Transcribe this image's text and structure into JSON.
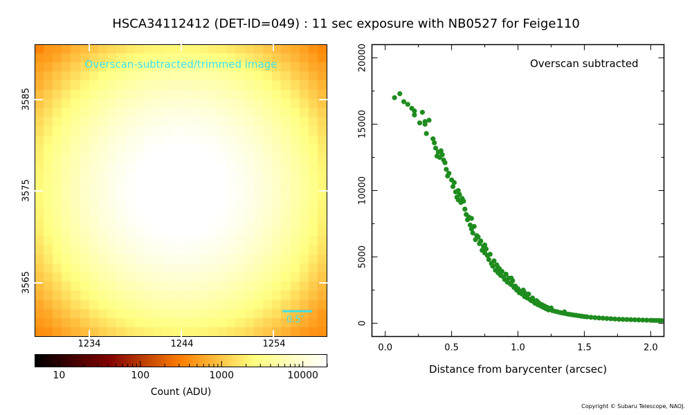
{
  "title": "HSCA34112412 (DET-ID=049) :  11 sec exposure with NB0527 for Feige110",
  "copyright": "Copyright © Subaru Telescope, NAOJ.",
  "image_panel": {
    "label": "Overscan-subtracted/trimmed image",
    "scale_bar_label": "0.5″",
    "x_ticks": [
      "1234",
      "1244",
      "1254"
    ],
    "y_ticks": [
      "3585",
      "3575",
      "3565"
    ],
    "colorbar": {
      "title": "Count (ADU)",
      "ticks": [
        "10",
        "100",
        "1000",
        "10000"
      ],
      "scale": "log",
      "colormap": "afmhot"
    }
  },
  "chart_data": {
    "type": "scatter",
    "annotation": "Overscan subtracted",
    "xlabel": "Distance from barycenter (arcsec)",
    "ylabel": "",
    "xlim": [
      -0.1,
      2.1
    ],
    "ylim": [
      -1000,
      21000
    ],
    "x_ticks": [
      "0.0",
      "0.5",
      "1.0",
      "1.5",
      "2.0"
    ],
    "y_ticks": [
      "0",
      "5000",
      "10000",
      "15000",
      "20000"
    ],
    "marker_color": "#1e8c1e",
    "points": [
      [
        0.07,
        17000
      ],
      [
        0.11,
        17300
      ],
      [
        0.14,
        16700
      ],
      [
        0.17,
        16500
      ],
      [
        0.2,
        16200
      ],
      [
        0.22,
        16000
      ],
      [
        0.22,
        15700
      ],
      [
        0.26,
        15100
      ],
      [
        0.28,
        15900
      ],
      [
        0.3,
        15000
      ],
      [
        0.3,
        15200
      ],
      [
        0.31,
        14300
      ],
      [
        0.33,
        15300
      ],
      [
        0.36,
        13900
      ],
      [
        0.37,
        13600
      ],
      [
        0.38,
        13200
      ],
      [
        0.39,
        12600
      ],
      [
        0.4,
        12900
      ],
      [
        0.41,
        12500
      ],
      [
        0.42,
        13000
      ],
      [
        0.43,
        12700
      ],
      [
        0.44,
        12300
      ],
      [
        0.46,
        11600
      ],
      [
        0.47,
        11100
      ],
      [
        0.48,
        11300
      ],
      [
        0.5,
        10800
      ],
      [
        0.51,
        10300
      ],
      [
        0.52,
        10600
      ],
      [
        0.53,
        9900
      ],
      [
        0.54,
        9500
      ],
      [
        0.55,
        9300
      ],
      [
        0.56,
        9700
      ],
      [
        0.57,
        9100
      ],
      [
        0.58,
        9400
      ],
      [
        0.59,
        9200
      ],
      [
        0.6,
        8600
      ],
      [
        0.61,
        8200
      ],
      [
        0.62,
        7800
      ],
      [
        0.63,
        8000
      ],
      [
        0.64,
        7400
      ],
      [
        0.65,
        7100
      ],
      [
        0.66,
        6800
      ],
      [
        0.67,
        7300
      ],
      [
        0.68,
        6300
      ],
      [
        0.69,
        6600
      ],
      [
        0.7,
        6500
      ],
      [
        0.71,
        6000
      ],
      [
        0.72,
        6200
      ],
      [
        0.73,
        5500
      ],
      [
        0.74,
        5800
      ],
      [
        0.75,
        5300
      ],
      [
        0.76,
        5600
      ],
      [
        0.77,
        5100
      ],
      [
        0.78,
        4800
      ],
      [
        0.79,
        5200
      ],
      [
        0.8,
        4500
      ],
      [
        0.81,
        4300
      ],
      [
        0.82,
        4700
      ],
      [
        0.83,
        4000
      ],
      [
        0.84,
        4400
      ],
      [
        0.85,
        3800
      ],
      [
        0.86,
        4100
      ],
      [
        0.87,
        3600
      ],
      [
        0.88,
        3900
      ],
      [
        0.89,
        3500
      ],
      [
        0.9,
        3300
      ],
      [
        0.91,
        3700
      ],
      [
        0.92,
        3100
      ],
      [
        0.93,
        3400
      ],
      [
        0.94,
        3000
      ],
      [
        0.95,
        2900
      ],
      [
        0.96,
        3200
      ],
      [
        0.97,
        2700
      ],
      [
        0.98,
        2800
      ],
      [
        0.99,
        2500
      ],
      [
        1.0,
        2600
      ],
      [
        1.01,
        2300
      ],
      [
        1.02,
        2400
      ],
      [
        1.03,
        2200
      ],
      [
        1.04,
        2500
      ],
      [
        1.05,
        2000
      ],
      [
        1.06,
        2100
      ],
      [
        1.07,
        1900
      ],
      [
        1.08,
        2200
      ],
      [
        1.09,
        1800
      ],
      [
        1.1,
        1700
      ],
      [
        1.11,
        1900
      ],
      [
        1.12,
        1600
      ],
      [
        1.13,
        1500
      ],
      [
        1.14,
        1700
      ],
      [
        1.15,
        1400
      ],
      [
        1.16,
        1500
      ],
      [
        1.17,
        1300
      ],
      [
        1.18,
        1400
      ],
      [
        1.19,
        1200
      ],
      [
        1.2,
        1300
      ],
      [
        1.21,
        1100
      ],
      [
        1.22,
        1200
      ],
      [
        1.23,
        1000
      ],
      [
        1.24,
        1100
      ],
      [
        1.26,
        950
      ],
      [
        1.28,
        900
      ],
      [
        1.3,
        850
      ],
      [
        1.32,
        800
      ],
      [
        1.34,
        760
      ],
      [
        1.36,
        720
      ],
      [
        1.38,
        680
      ],
      [
        1.4,
        650
      ],
      [
        1.42,
        620
      ],
      [
        1.44,
        590
      ],
      [
        1.46,
        560
      ],
      [
        1.48,
        530
      ],
      [
        1.5,
        500
      ],
      [
        1.52,
        480
      ],
      [
        1.55,
        450
      ],
      [
        1.58,
        420
      ],
      [
        1.61,
        400
      ],
      [
        1.64,
        380
      ],
      [
        1.67,
        360
      ],
      [
        1.7,
        340
      ],
      [
        1.73,
        320
      ],
      [
        1.76,
        300
      ],
      [
        1.79,
        290
      ],
      [
        1.82,
        280
      ],
      [
        1.85,
        270
      ],
      [
        1.88,
        260
      ],
      [
        1.91,
        250
      ],
      [
        1.94,
        240
      ],
      [
        1.97,
        230
      ],
      [
        2.0,
        220
      ],
      [
        2.02,
        215
      ],
      [
        2.04,
        210
      ],
      [
        2.06,
        205
      ],
      [
        2.08,
        200
      ],
      [
        0.45,
        12100
      ],
      [
        0.55,
        10000
      ],
      [
        0.65,
        7900
      ],
      [
        0.75,
        5900
      ],
      [
        0.85,
        4200
      ],
      [
        0.95,
        3400
      ],
      [
        1.05,
        2300
      ],
      [
        1.15,
        1600
      ],
      [
        1.25,
        1150
      ],
      [
        1.35,
        850
      ]
    ]
  }
}
